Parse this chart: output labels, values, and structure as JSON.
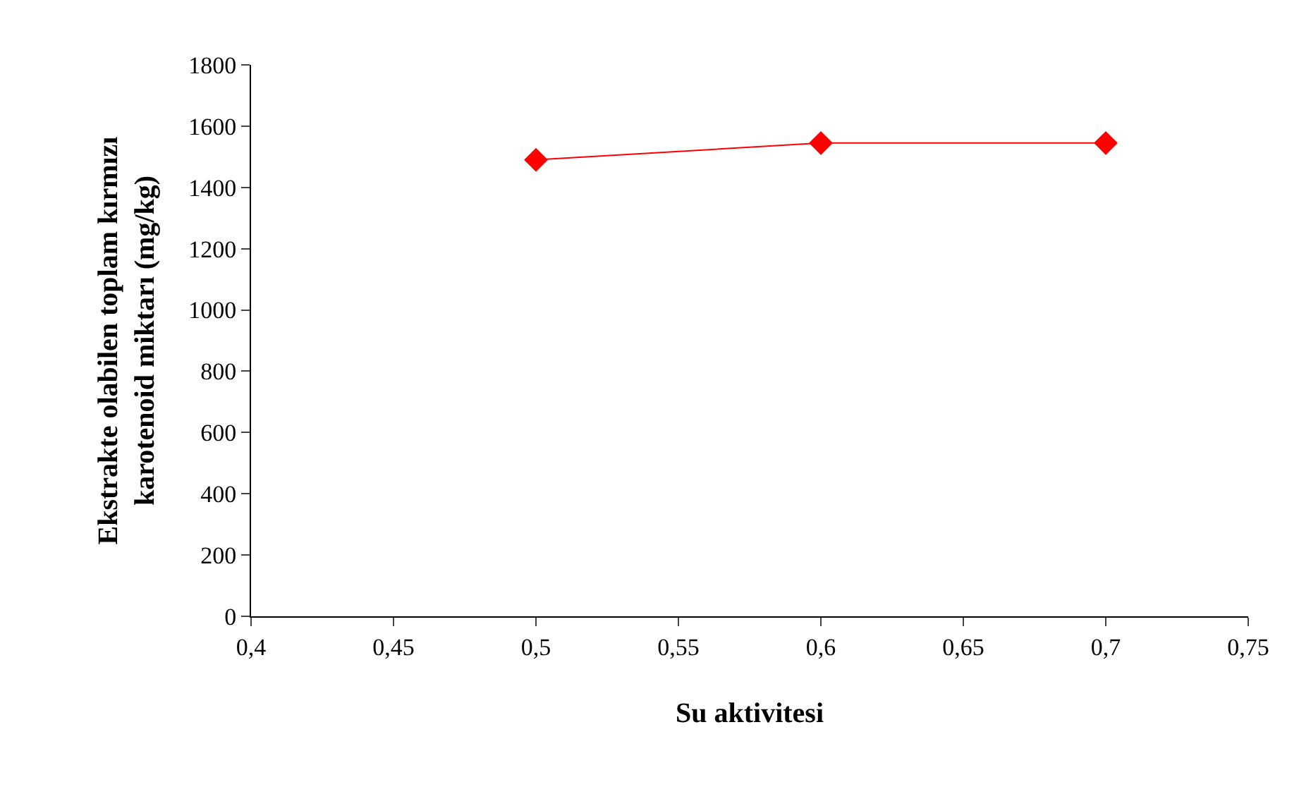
{
  "chart_data": {
    "type": "line",
    "xlabel": "Su aktivitesi",
    "ylabel": "Ekstrakte olabilen toplam kırmızı\nkarotenoid miktarı (mg/kg)",
    "x": [
      0.5,
      0.6,
      0.7
    ],
    "series": [
      {
        "color": "#ff0000",
        "values": [
          1490,
          1545,
          1545
        ]
      }
    ],
    "xlim": [
      0.4,
      0.75
    ],
    "xticks": [
      {
        "value": 0.4,
        "label": "0,4"
      },
      {
        "value": 0.45,
        "label": "0,45"
      },
      {
        "value": 0.5,
        "label": "0,5"
      },
      {
        "value": 0.55,
        "label": "0,55"
      },
      {
        "value": 0.6,
        "label": "0,6"
      },
      {
        "value": 0.65,
        "label": "0,65"
      },
      {
        "value": 0.7,
        "label": "0,7"
      },
      {
        "value": 0.75,
        "label": "0,75"
      }
    ],
    "ylim": [
      0,
      1800
    ],
    "yticks": [
      0,
      200,
      400,
      600,
      800,
      1000,
      1200,
      1400,
      1600,
      1800
    ],
    "grid": false,
    "marker": "diamond",
    "line_style": "solid"
  }
}
